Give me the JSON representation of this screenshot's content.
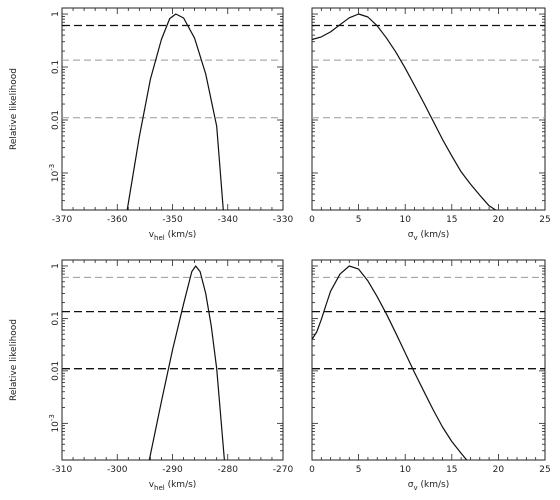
{
  "chart_data": [
    {
      "type": "line",
      "ylabel": "Relative likelihood",
      "xlabel_main": "v",
      "xlabel_sub": "hel",
      "xlabel_unit": "(km/s)",
      "xlim": [
        -370,
        -330
      ],
      "xticks": [
        -370,
        -360,
        -350,
        -340,
        -330
      ],
      "xtick_labels": [
        "-370",
        "-360",
        "-350",
        "-340",
        "-330"
      ],
      "yscale": "log",
      "ylim": [
        0.0002,
        1.3
      ],
      "yticks": [
        {
          "value": 1,
          "base": "1",
          "exp": ""
        },
        {
          "value": 0.1,
          "base": "0.1",
          "exp": ""
        },
        {
          "value": 0.01,
          "base": "0.01",
          "exp": ""
        },
        {
          "value": 0.001,
          "base": "10",
          "exp": "-3"
        }
      ],
      "reference_lines": [
        {
          "y": 0.607,
          "style": "dark"
        },
        {
          "y": 0.135,
          "style": "light"
        },
        {
          "y": 0.011,
          "style": "light"
        }
      ],
      "series": [
        {
          "x": [
            -358.2,
            -356,
            -354,
            -352,
            -350.5,
            -349.4,
            -348,
            -346,
            -344,
            -342,
            -340.8
          ],
          "y": [
            0.0002,
            0.0048,
            0.059,
            0.33,
            0.82,
            1.0,
            0.84,
            0.35,
            0.074,
            0.0076,
            0.0002
          ]
        }
      ]
    },
    {
      "type": "line",
      "xlabel_main": "σ",
      "xlabel_sub": "v",
      "xlabel_unit": "(km/s)",
      "xlim": [
        0,
        25
      ],
      "xticks": [
        0,
        5,
        10,
        15,
        20,
        25
      ],
      "xtick_labels": [
        "0",
        "5",
        "10",
        "15",
        "20",
        "25"
      ],
      "yscale": "log",
      "ylim": [
        0.0002,
        1.3
      ],
      "reference_lines": [
        {
          "y": 0.607,
          "style": "dark"
        },
        {
          "y": 0.135,
          "style": "light"
        },
        {
          "y": 0.011,
          "style": "light"
        }
      ],
      "series": [
        {
          "x": [
            0,
            1,
            2,
            3,
            4,
            5,
            6,
            7,
            8,
            9,
            10,
            11,
            12,
            13,
            14,
            15,
            16,
            17,
            18,
            19,
            19.7
          ],
          "y": [
            0.33,
            0.37,
            0.46,
            0.63,
            0.85,
            1.0,
            0.88,
            0.6,
            0.35,
            0.19,
            0.095,
            0.045,
            0.021,
            0.0095,
            0.0043,
            0.0021,
            0.00105,
            0.00062,
            0.00038,
            0.00024,
            0.0002
          ]
        }
      ]
    },
    {
      "type": "line",
      "ylabel": "Relative likelihood",
      "xlabel_main": "v",
      "xlabel_sub": "hel",
      "xlabel_unit": "(km/s)",
      "xlim": [
        -310,
        -270
      ],
      "xticks": [
        -310,
        -300,
        -290,
        -280,
        -270
      ],
      "xtick_labels": [
        "-310",
        "-300",
        "-290",
        "-280",
        "-270"
      ],
      "yscale": "log",
      "ylim": [
        0.0002,
        1.3
      ],
      "yticks": [
        {
          "value": 1,
          "base": "1",
          "exp": ""
        },
        {
          "value": 0.1,
          "base": "0.1",
          "exp": ""
        },
        {
          "value": 0.01,
          "base": "0.01",
          "exp": ""
        },
        {
          "value": 0.001,
          "base": "10",
          "exp": "-3"
        }
      ],
      "reference_lines": [
        {
          "y": 0.607,
          "style": "light"
        },
        {
          "y": 0.135,
          "style": "dark"
        },
        {
          "y": 0.011,
          "style": "dark"
        }
      ],
      "series": [
        {
          "x": [
            -294.2,
            -292,
            -290,
            -288,
            -286.5,
            -285.8,
            -285,
            -284,
            -283,
            -282,
            -280.6
          ],
          "y": [
            0.0002,
            0.0026,
            0.025,
            0.19,
            0.78,
            1.0,
            0.78,
            0.3,
            0.073,
            0.011,
            0.0002
          ]
        }
      ]
    },
    {
      "type": "line",
      "xlabel_main": "σ",
      "xlabel_sub": "v",
      "xlabel_unit": "(km/s)",
      "xlim": [
        0,
        25
      ],
      "xticks": [
        0,
        5,
        10,
        15,
        20,
        25
      ],
      "xtick_labels": [
        "0",
        "5",
        "10",
        "15",
        "20",
        "25"
      ],
      "yscale": "log",
      "ylim": [
        0.0002,
        1.3
      ],
      "reference_lines": [
        {
          "y": 0.607,
          "style": "light"
        },
        {
          "y": 0.135,
          "style": "dark"
        },
        {
          "y": 0.011,
          "style": "dark"
        }
      ],
      "series": [
        {
          "x": [
            0,
            0.5,
            1,
            1.5,
            2,
            3,
            4,
            5,
            6,
            7,
            8,
            9,
            10,
            11,
            12,
            13,
            14,
            15,
            16,
            16.6
          ],
          "y": [
            0.04,
            0.055,
            0.095,
            0.18,
            0.33,
            0.7,
            1.0,
            0.87,
            0.52,
            0.26,
            0.12,
            0.052,
            0.022,
            0.0093,
            0.0041,
            0.0018,
            0.00085,
            0.00045,
            0.00027,
            0.0002
          ]
        }
      ]
    }
  ]
}
